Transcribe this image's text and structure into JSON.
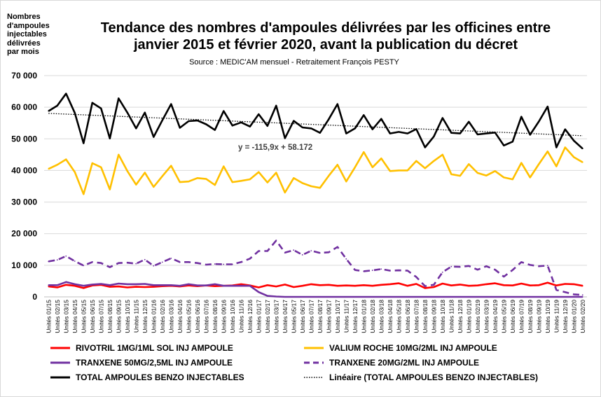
{
  "chart_data": {
    "type": "line",
    "title": "Tendance des nombres d'ampoules délivrées par les officines entre\njanvier 2015 et février 2020, avant la publication du décret",
    "subtitle": "Source : MEDIC'AM mensuel - Retraitement François PESTY",
    "ylabel": "Nombres\nd'ampoules\ninjectables\ndélivrées\npar mois",
    "ylim": [
      0,
      70000
    ],
    "yticks": [
      "0",
      "10 000",
      "20 000",
      "30 000",
      "40 000",
      "50 000",
      "60 000",
      "70 000"
    ],
    "grid": true,
    "legend_position": "bottom",
    "trend_label": "y = -115,9x + 58.172",
    "x": [
      "Unités 01/15",
      "Unités 02/15",
      "Unités 03/15",
      "Unités 04/15",
      "Unités 05/15",
      "Unités 06/15",
      "Unités 07/15",
      "Unités 08/15",
      "Unités 09/15",
      "Unités 10/15",
      "Unités 11/15",
      "Unités 12/15",
      "Unités 01/16",
      "Unités 02/16",
      "Unités 03/16",
      "Unités 04/16",
      "Unités 05/16",
      "Unités 06/16",
      "Unités 07/16",
      "Unités 08/16",
      "Unités 09/16",
      "Unités 10/16",
      "Unités 11/16",
      "Unités 12/16",
      "Unités 01/17",
      "Unités 02/17",
      "Unités 03/17",
      "Unités 04/17",
      "Unités 05/17",
      "Unités 06/17",
      "Unités 07/17",
      "Unités 08/17",
      "Unités 09/17",
      "Unités 10/17",
      "Unités 11/17",
      "Unités 12/17",
      "Unités 01/18",
      "Unités 02/18",
      "Unités 03/18",
      "Unités 04/18",
      "Unités 05/18",
      "Unités 06/18",
      "Unités 07/18",
      "Unités 08/18",
      "Unités 09/18",
      "Unités 10/18",
      "Unités 11/18",
      "Unités 12/18",
      "Unités 01/19",
      "Unités 02/19",
      "Unités 03/19",
      "Unités 04/19",
      "Unités 05/19",
      "Unités 06/19",
      "Unités 07/19",
      "Unités 08/19",
      "Unités 09/19",
      "Unités 10/19",
      "Unités 11/19",
      "Unités 12/19",
      "Unités 01/20",
      "Unités 02/20"
    ],
    "series": [
      {
        "name": "RIVOTRIL 1MG/1ML SOL INJ AMPOULE",
        "color": "#ff0000",
        "dash": false,
        "values": [
          3300,
          3000,
          3800,
          3500,
          2800,
          3600,
          3800,
          3200,
          3300,
          3000,
          3200,
          3100,
          3200,
          3400,
          3500,
          3300,
          3600,
          3400,
          3600,
          3400,
          3500,
          3600,
          4000,
          3600,
          3000,
          3700,
          3300,
          3900,
          3100,
          3500,
          4000,
          3700,
          3800,
          3500,
          3600,
          3500,
          3700,
          3500,
          3800,
          4000,
          4300,
          3500,
          4100,
          2800,
          3100,
          4200,
          3600,
          3900,
          3500,
          3600,
          4000,
          4300,
          3700,
          3600,
          4200,
          3600,
          3700,
          4500,
          3600,
          4100,
          4000,
          3500
        ]
      },
      {
        "name": "VALIUM ROCHE 10MG/2ML INJ AMPOULE",
        "color": "#ffc000",
        "dash": false,
        "values": [
          40500,
          41800,
          43500,
          39500,
          32500,
          42300,
          41000,
          34000,
          45000,
          39800,
          35500,
          39300,
          34800,
          38200,
          41500,
          36300,
          36500,
          37600,
          37300,
          35400,
          41300,
          36300,
          36700,
          37200,
          39500,
          36200,
          39300,
          33000,
          37600,
          36000,
          35000,
          34500,
          38300,
          41800,
          36500,
          41000,
          45800,
          41000,
          43800,
          39800,
          40000,
          40000,
          43000,
          40700,
          43000,
          45000,
          38800,
          38300,
          42000,
          39200,
          38400,
          39800,
          37800,
          37200,
          42400,
          37800,
          42000,
          46000,
          41300,
          47300,
          44200,
          42600
        ]
      },
      {
        "name": "TRANXENE 50MG/2,5ML INJ AMPOULE",
        "color": "#7030a0",
        "dash": false,
        "values": [
          3700,
          3700,
          4700,
          4000,
          3500,
          3900,
          4100,
          3700,
          4200,
          4000,
          4000,
          4100,
          3700,
          3700,
          3700,
          3500,
          4000,
          3600,
          3600,
          4000,
          3500,
          3500,
          3500,
          3500,
          1500,
          300,
          100,
          0,
          0,
          0,
          0,
          0,
          0,
          0,
          0,
          0,
          0,
          0,
          0,
          0,
          0,
          0,
          0,
          0,
          0,
          0,
          0,
          0,
          0,
          0,
          0,
          0,
          0,
          0,
          0,
          0,
          0,
          0,
          0,
          0,
          0,
          0
        ]
      },
      {
        "name": "TRANXENE 20MG/2ML INJ AMPOULE",
        "color": "#7030a0",
        "dash": true,
        "values": [
          11200,
          11700,
          12900,
          11300,
          9900,
          11000,
          10700,
          9400,
          10700,
          10800,
          10500,
          11800,
          9800,
          11000,
          12200,
          11000,
          11000,
          10700,
          10200,
          10400,
          10300,
          10300,
          11000,
          12100,
          14500,
          14500,
          17800,
          14000,
          14800,
          13300,
          14600,
          13900,
          14100,
          15800,
          12000,
          8500,
          8100,
          8400,
          8800,
          8300,
          8400,
          8300,
          6300,
          3400,
          3800,
          7800,
          9600,
          9500,
          9800,
          8600,
          9700,
          8600,
          6400,
          8500,
          11000,
          10100,
          9700,
          9900,
          2200,
          1500,
          800,
          600
        ]
      },
      {
        "name": "TOTAL AMPOULES BENZO INJECTABLES",
        "color": "#000000",
        "dash": false,
        "values": [
          58800,
          60500,
          64300,
          58200,
          48600,
          61400,
          59600,
          50100,
          62800,
          58300,
          53300,
          58300,
          50600,
          55900,
          61000,
          53500,
          55600,
          55800,
          54600,
          52800,
          58800,
          54200,
          55200,
          53900,
          57800,
          54100,
          60500,
          50200,
          55700,
          53600,
          53300,
          51900,
          56200,
          61000,
          51700,
          53300,
          57500,
          53000,
          56300,
          51700,
          52200,
          51700,
          53100,
          47300,
          50700,
          56600,
          51900,
          51700,
          55400,
          51400,
          51700,
          52000,
          47900,
          49100,
          57000,
          51300,
          55500,
          60200,
          47300,
          53000,
          49400,
          46900
        ]
      }
    ],
    "trend": {
      "name": "Linéaire (TOTAL AMPOULES BENZO INJECTABLES)",
      "slope": -115.9,
      "intercept": 58172,
      "color": "#000000"
    }
  }
}
